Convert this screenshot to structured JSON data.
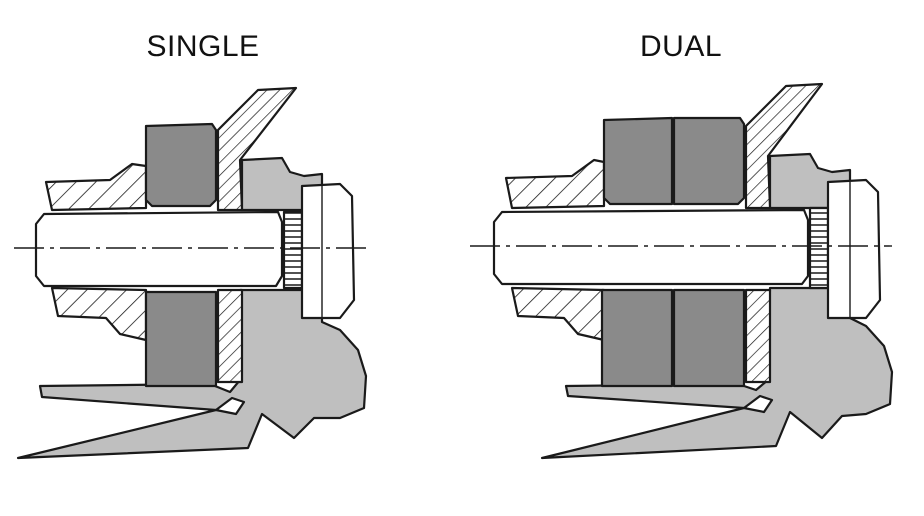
{
  "labels": {
    "single": "SINGLE",
    "dual": "DUAL"
  },
  "colors": {
    "background": "#ffffff",
    "outline": "#1a1a1a",
    "friction_disc": "#8a8a8a",
    "light_grey_body": "#bfbfbf",
    "bolt": "#ffffff"
  },
  "panels": [
    {
      "name": "single",
      "disc_count": 1
    },
    {
      "name": "dual",
      "disc_count": 2
    }
  ]
}
